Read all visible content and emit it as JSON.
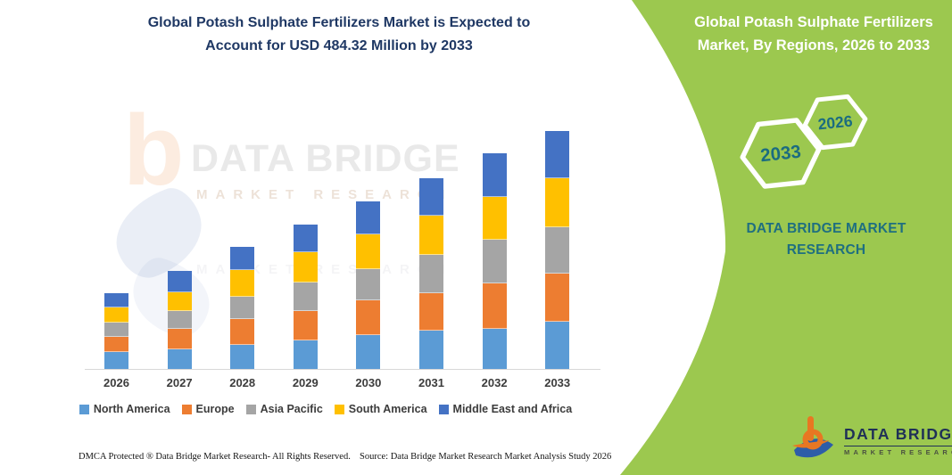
{
  "title": {
    "line1": "Global Potash Sulphate Fertilizers Market is Expected to",
    "line2": "Account for USD 484.32 Million by 2033"
  },
  "right_panel": {
    "title_line1": "Global Potash Sulphate Fertilizers",
    "title_line2": "Market, By Regions, 2026 to 2033",
    "hexagon_back_label": "2033",
    "hexagon_front_label": "2026",
    "brand_line1": "DATA BRIDGE MARKET",
    "brand_line2": "RESEARCH",
    "colors": {
      "panel_green": "#9CC84F",
      "hexagon_border": "#FFFFFF",
      "year_text": "#1B6C80",
      "brand_text": "#1F6F80",
      "title_text": "#FFFFFF"
    }
  },
  "watermark": {
    "letter": "b",
    "brand": "DATA BRIDGE",
    "sub": "MARKET RESEARCH"
  },
  "chart_data": {
    "type": "bar",
    "stacked": true,
    "title": "Global Potash Sulphate Fertilizers Market is Expected to Account for USD 484.32 Million by 2033",
    "unit": "USD Million",
    "categories": [
      "2026",
      "2027",
      "2028",
      "2029",
      "2030",
      "2031",
      "2032",
      "2033"
    ],
    "series": [
      {
        "name": "North America",
        "color": "#5B9BD5",
        "values": [
          35,
          41,
          50,
          59,
          70,
          79,
          83,
          98
        ]
      },
      {
        "name": "Europe",
        "color": "#ED7D31",
        "values": [
          29,
          40,
          51,
          58,
          69,
          75,
          92,
          97
        ]
      },
      {
        "name": "Asia Pacific",
        "color": "#A5A5A5",
        "values": [
          28,
          35,
          45,
          58,
          63,
          78,
          88,
          94
        ]
      },
      {
        "name": "South America",
        "color": "#FFC000",
        "values": [
          29,
          37,
          52,
          60,
          70,
          79,
          86,
          100
        ]
      },
      {
        "name": "Middle East and Africa",
        "color": "#4472C4",
        "values": [
          28,
          42,
          46,
          56,
          66,
          76,
          89,
          95.32
        ]
      }
    ],
    "ylim": [
      0,
      500
    ],
    "grid": false,
    "y_axis_visible": false,
    "legend_position": "bottom",
    "annotation_total_2033": "484.32"
  },
  "footer": {
    "dmca": "DMCA Protected ® Data Bridge Market Research-  All Rights Reserved.",
    "source": "Source: Data Bridge Market Research  Market Analysis Study 2026"
  },
  "logo": {
    "name": "DATA BRIDGE",
    "sub": "MARKET RESEARCH",
    "orange": "#E87722",
    "blue": "#2D5DA8"
  }
}
